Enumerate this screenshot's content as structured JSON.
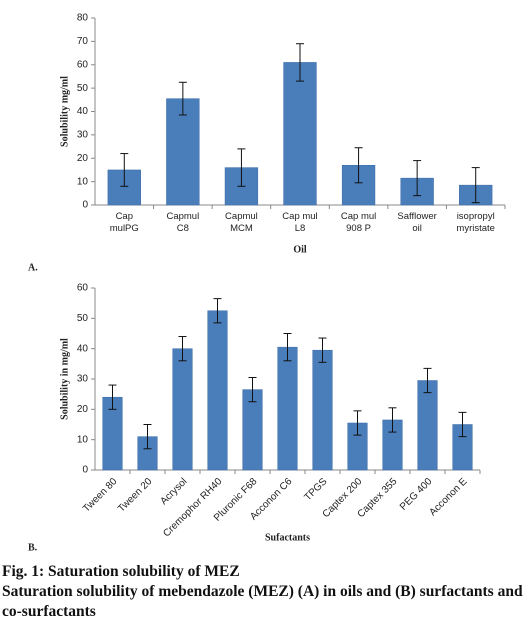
{
  "chart_data": [
    {
      "type": "bar",
      "panel_label": "A.",
      "x_label": "Oil",
      "y_label": "Solubility mg/ml",
      "categories": [
        "Cap mulPG",
        "Capmul  C8",
        "Capmul MCM",
        "Cap mul L8",
        "Cap mul  908 P",
        "Safflower oil",
        "isopropyl myristate"
      ],
      "values": [
        15,
        45.5,
        16,
        61,
        17,
        11.5,
        8.5
      ],
      "errors": [
        7,
        7,
        8,
        8,
        7.5,
        7.5,
        7.5
      ],
      "color": "#4a7ebb",
      "ylim": [
        0,
        80
      ],
      "yticks": [
        0,
        10,
        20,
        30,
        40,
        50,
        60,
        70,
        80
      ],
      "grid": false,
      "label_rotation": 0
    },
    {
      "type": "bar",
      "panel_label": "B.",
      "x_label": "Sufactants",
      "y_label": "Solubility in mg/ml",
      "categories": [
        "Tween 80",
        "Tween 20",
        "Acrysol",
        "Cremophor RH40",
        "Pluronic F68",
        "Acconon C6",
        "TPGS",
        "Captex 200",
        "Captex 355",
        "PEG 400",
        "Acconon E"
      ],
      "values": [
        24,
        11,
        40,
        52.5,
        26.5,
        40.5,
        39.5,
        15.5,
        16.5,
        29.5,
        15
      ],
      "errors": [
        4,
        4,
        4,
        4,
        4,
        4.5,
        4,
        4,
        4,
        4,
        4
      ],
      "color": "#4a7ebb",
      "ylim": [
        0,
        60
      ],
      "yticks": [
        0,
        10,
        20,
        30,
        40,
        50,
        60
      ],
      "grid": false,
      "label_rotation": -45
    }
  ],
  "caption": {
    "title": "Fig. 1: Saturation solubility of MEZ",
    "text": "Saturation solubility of mebendazole (MEZ) (A) in oils and (B) surfactants and co-surfactants"
  }
}
